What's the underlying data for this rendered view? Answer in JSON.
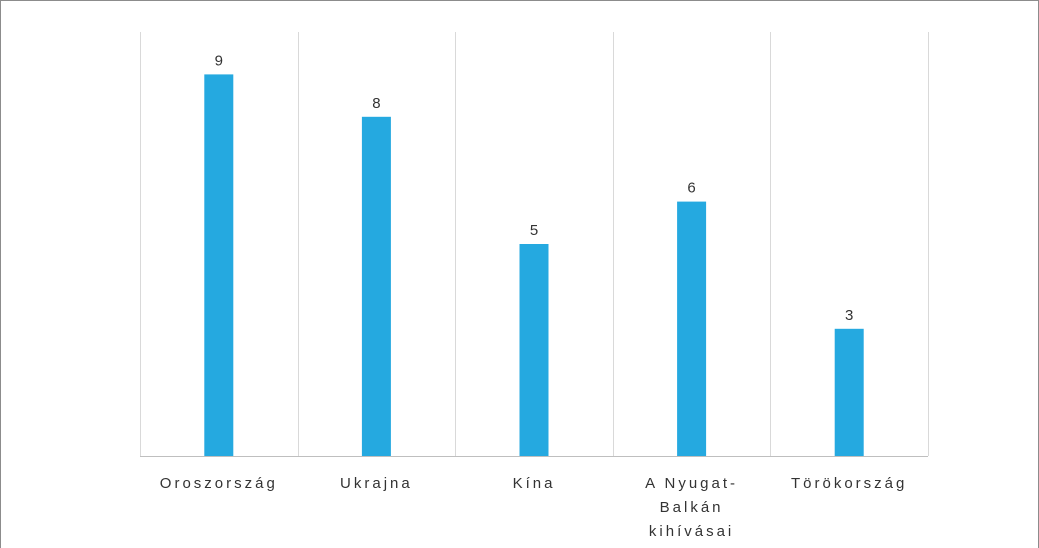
{
  "chart_data": {
    "type": "bar",
    "categories": [
      [
        "Oroszország"
      ],
      [
        "Ukrajna"
      ],
      [
        "Kína"
      ],
      [
        "A Nyugat-",
        "Balkán",
        "kihívásai"
      ],
      [
        "Törökország"
      ]
    ],
    "values": [
      9,
      8,
      5,
      6,
      3
    ],
    "data_labels": [
      "9",
      "8",
      "5",
      "6",
      "3"
    ],
    "ylim": [
      0,
      10
    ],
    "grid": "vertical",
    "legend": "none",
    "colors": {
      "bar": "#25a9e0",
      "grid": "#d9d9d9",
      "axis": "#bfbfbf",
      "text": "#333333",
      "frame": "#8c8c8c"
    }
  }
}
